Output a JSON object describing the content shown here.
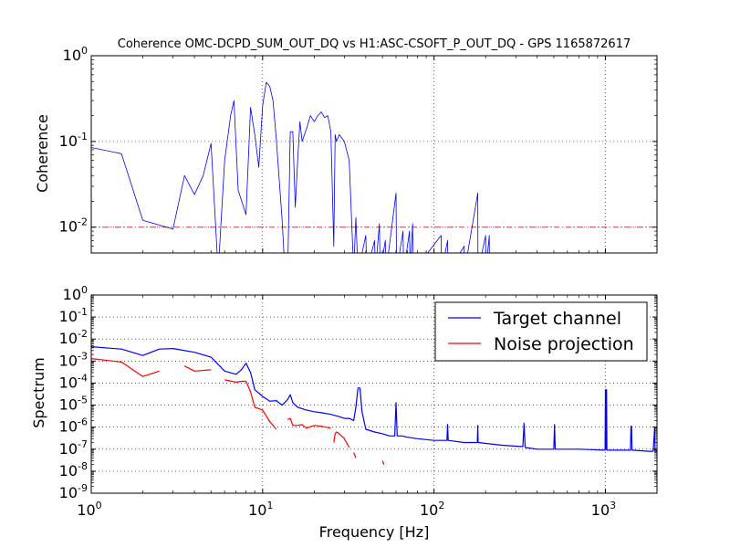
{
  "chart_data": [
    {
      "type": "line",
      "title": "Coherence OMC-DCPD_SUM_OUT_DQ vs H1:ASC-CSOFT_P_OUT_DQ - GPS 1165872617",
      "ylabel": "Coherence",
      "xlabel": "",
      "x_scale": "log",
      "y_scale": "log",
      "xlim": [
        1,
        2000
      ],
      "ylim": [
        0.005,
        1
      ],
      "y_ticks": [
        {
          "base": "10",
          "exp": "0",
          "v": 1
        },
        {
          "base": "10",
          "exp": "-1",
          "v": 0.1
        },
        {
          "base": "10",
          "exp": "-2",
          "v": 0.01
        }
      ],
      "grid": true,
      "threshold": {
        "value": 0.01,
        "color": "#cc0000",
        "style": "dash-dot"
      },
      "series": [
        {
          "color": "#0000ff",
          "points": [
            [
              1,
              0.085
            ],
            [
              1.5,
              0.072
            ],
            [
              2,
              0.012
            ],
            [
              3,
              0.0095
            ],
            [
              3.5,
              0.04
            ],
            [
              4,
              0.024
            ],
            [
              4.5,
              0.04
            ],
            [
              5,
              0.095
            ],
            [
              5.5,
              0.003
            ],
            [
              6,
              0.06
            ],
            [
              6.5,
              0.2
            ],
            [
              6.8,
              0.3
            ],
            [
              7.2,
              0.027
            ],
            [
              8,
              0.014
            ],
            [
              8.5,
              0.25
            ],
            [
              9,
              0.12
            ],
            [
              9.5,
              0.05
            ],
            [
              10,
              0.26
            ],
            [
              10.5,
              0.49
            ],
            [
              11,
              0.44
            ],
            [
              11.5,
              0.3
            ],
            [
              12,
              0.11
            ],
            [
              13,
              0.012
            ],
            [
              13.5,
              0.003
            ],
            [
              14,
              0.003
            ],
            [
              14.5,
              0.13
            ],
            [
              15,
              0.13
            ],
            [
              15.5,
              0.017
            ],
            [
              16,
              0.06
            ],
            [
              16.5,
              0.17
            ],
            [
              17,
              0.1
            ],
            [
              18,
              0.14
            ],
            [
              19,
              0.2
            ],
            [
              20,
              0.17
            ],
            [
              21,
              0.2
            ],
            [
              22,
              0.22
            ],
            [
              23,
              0.19
            ],
            [
              24,
              0.2
            ],
            [
              25,
              0.13
            ],
            [
              26,
              0.006
            ],
            [
              26.5,
              0.12
            ],
            [
              27,
              0.1
            ],
            [
              28,
              0.12
            ],
            [
              30,
              0.1
            ],
            [
              32,
              0.06
            ],
            [
              34,
              0.003
            ],
            [
              35,
              0.013
            ],
            [
              36,
              0.003
            ],
            [
              40,
              0.008
            ],
            [
              40.5,
              0.003
            ],
            [
              45,
              0.007
            ],
            [
              45.5,
              0.003
            ],
            [
              48,
              0.011
            ],
            [
              48.5,
              0.003
            ],
            [
              52,
              0.007
            ],
            [
              52.5,
              0.003
            ],
            [
              60,
              0.025
            ],
            [
              60.5,
              0.003
            ],
            [
              66,
              0.009
            ],
            [
              66.5,
              0.003
            ],
            [
              72,
              0.009
            ],
            [
              72.5,
              0.003
            ],
            [
              75,
              0.011
            ],
            [
              75.5,
              0.003
            ],
            [
              110,
              0.008
            ],
            [
              110.5,
              0.003
            ],
            [
              120,
              0.007
            ],
            [
              120.5,
              0.003
            ],
            [
              150,
              0.006
            ],
            [
              150.5,
              0.003
            ],
            [
              180,
              0.025
            ],
            [
              180.5,
              0.003
            ],
            [
              200,
              0.008
            ],
            [
              200.5,
              0.003
            ],
            [
              210,
              0.008
            ],
            [
              210.5,
              0.003
            ]
          ]
        }
      ]
    },
    {
      "type": "line",
      "title": "",
      "ylabel": "Spectrum",
      "xlabel": "Frequency [Hz]",
      "x_scale": "log",
      "y_scale": "log",
      "xlim": [
        1,
        2000
      ],
      "ylim": [
        1e-09,
        1
      ],
      "x_ticks": [
        {
          "base": "10",
          "exp": "0",
          "v": 1
        },
        {
          "base": "10",
          "exp": "1",
          "v": 10
        },
        {
          "base": "10",
          "exp": "2",
          "v": 100
        },
        {
          "base": "10",
          "exp": "3",
          "v": 1000
        }
      ],
      "y_ticks": [
        {
          "base": "10",
          "exp": "0",
          "v": 1
        },
        {
          "base": "10",
          "exp": "-1",
          "v": 0.1
        },
        {
          "base": "10",
          "exp": "-2",
          "v": 0.01
        },
        {
          "base": "10",
          "exp": "-3",
          "v": 0.001
        },
        {
          "base": "10",
          "exp": "-4",
          "v": 0.0001
        },
        {
          "base": "10",
          "exp": "-5",
          "v": 1e-05
        },
        {
          "base": "10",
          "exp": "-6",
          "v": 1e-06
        },
        {
          "base": "10",
          "exp": "-7",
          "v": 1e-07
        },
        {
          "base": "10",
          "exp": "-8",
          "v": 1e-08
        },
        {
          "base": "10",
          "exp": "-9",
          "v": 1e-09
        }
      ],
      "grid": true,
      "legend": {
        "placement": "top-right"
      },
      "series": [
        {
          "name": "Target channel",
          "color": "#0000ff",
          "segments": [
            [
              [
                1,
                0.0045
              ],
              [
                1.5,
                0.0035
              ],
              [
                2,
                0.0018
              ],
              [
                2.5,
                0.0035
              ],
              [
                3,
                0.0037
              ],
              [
                4,
                0.0025
              ],
              [
                5,
                0.0015
              ],
              [
                6,
                0.00035
              ],
              [
                7,
                0.00025
              ],
              [
                7.5,
                0.0004
              ],
              [
                8,
                0.0008
              ],
              [
                8.5,
                0.0003
              ],
              [
                9,
                5e-05
              ],
              [
                10,
                2.5e-05
              ],
              [
                11,
                1.5e-05
              ],
              [
                12,
                1.6e-05
              ],
              [
                13,
                1e-05
              ],
              [
                14,
                1.8e-05
              ],
              [
                14.5,
                3e-05
              ],
              [
                15,
                1.3e-05
              ],
              [
                16,
                8e-06
              ],
              [
                18,
                6e-06
              ],
              [
                20,
                5e-06
              ],
              [
                22,
                4.5e-06
              ],
              [
                25,
                3.8e-06
              ],
              [
                28,
                3e-06
              ],
              [
                30,
                2.5e-06
              ],
              [
                32,
                2.5e-06
              ],
              [
                34,
                2e-06
              ],
              [
                35,
                8e-06
              ],
              [
                36,
                6e-05
              ],
              [
                37,
                6e-05
              ],
              [
                38,
                5e-06
              ],
              [
                40,
                8e-07
              ],
              [
                45,
                6e-07
              ],
              [
                50,
                5e-07
              ],
              [
                55,
                4e-07
              ],
              [
                59,
                4e-07
              ],
              [
                60,
                1.3e-05
              ],
              [
                61,
                4e-07
              ],
              [
                65,
                4e-07
              ],
              [
                70,
                3.5e-07
              ],
              [
                80,
                3e-07
              ],
              [
                100,
                2.5e-07
              ],
              [
                119,
                2.5e-07
              ],
              [
                120,
                1.3e-06
              ],
              [
                121,
                2.5e-07
              ],
              [
                150,
                2e-07
              ],
              [
                179,
                2e-07
              ],
              [
                180,
                1.2e-06
              ],
              [
                181,
                2e-07
              ],
              [
                250,
                1.5e-07
              ],
              [
                330,
                1.3e-07
              ],
              [
                335,
                1.5e-06
              ],
              [
                340,
                1.2e-07
              ],
              [
                400,
                1e-07
              ],
              [
                500,
                1e-07
              ],
              [
                505,
                1.3e-06
              ],
              [
                510,
                1e-07
              ],
              [
                700,
                1e-07
              ],
              [
                995,
                9e-08
              ],
              [
                1000,
                5e-05
              ],
              [
                1010,
                1e-07
              ],
              [
                1015,
                5e-05
              ],
              [
                1020,
                9e-08
              ],
              [
                1400,
                9e-08
              ],
              [
                1410,
                1.1e-06
              ],
              [
                1420,
                1.1e-06
              ],
              [
                1430,
                9e-08
              ],
              [
                1800,
                8e-08
              ],
              [
                1900,
                8e-08
              ],
              [
                1940,
                1e-06
              ],
              [
                1950,
                8e-08
              ],
              [
                2000,
                8e-08
              ]
            ]
          ]
        },
        {
          "name": "Noise projection",
          "color": "#ff0000",
          "segments": [
            [
              [
                1,
                0.0013
              ],
              [
                1.5,
                0.0009
              ],
              [
                2,
                0.0002
              ],
              [
                2.5,
                0.00035
              ]
            ],
            [
              [
                3.5,
                0.0006
              ],
              [
                4,
                0.00035
              ],
              [
                5,
                0.0004
              ]
            ],
            [
              [
                6,
                0.00014
              ],
              [
                7,
                0.00011
              ],
              [
                7.5,
                0.00012
              ],
              [
                8,
                0.00012
              ],
              [
                8.5,
                4e-05
              ],
              [
                9,
                8e-06
              ],
              [
                10,
                6e-06
              ],
              [
                11,
                1.8e-06
              ],
              [
                12,
                8e-07
              ]
            ],
            [
              [
                14,
                2.2e-06
              ],
              [
                14.5,
                2.5e-06
              ],
              [
                15,
                1.2e-06
              ],
              [
                16,
                1.2e-06
              ],
              [
                17,
                1.3e-06
              ],
              [
                18,
                9e-07
              ],
              [
                20,
                1.2e-06
              ],
              [
                22,
                1.1e-06
              ],
              [
                25,
                9e-07
              ]
            ],
            [
              [
                26,
                2e-07
              ],
              [
                26.5,
                5e-07
              ],
              [
                27,
                6e-07
              ],
              [
                28,
                5e-07
              ],
              [
                30,
                3e-07
              ],
              [
                32,
                1.2e-07
              ]
            ],
            [
              [
                34,
                7e-08
              ],
              [
                35,
                4e-08
              ]
            ],
            [
              [
                50,
                3e-08
              ],
              [
                51,
                2e-08
              ]
            ]
          ]
        }
      ]
    }
  ]
}
